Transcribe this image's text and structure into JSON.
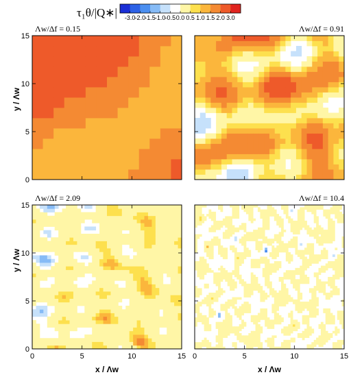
{
  "chart_data": {
    "type": "heatmap",
    "colorbar": {
      "title": "τ₁θ/|Q∗|",
      "ticks": [
        "-3.0",
        "-2.0",
        "-1.5",
        "-1.0",
        "-0.5",
        "0.0",
        "0.5",
        "1.0",
        "1.5",
        "2.0",
        "3.0"
      ],
      "colors": [
        "#1a2fd6",
        "#2d62e6",
        "#4b8ff0",
        "#86bbf6",
        "#c6e1fb",
        "#ffffff",
        "#fff6a6",
        "#fde04e",
        "#fbb63c",
        "#f48a33",
        "#ee5a2a",
        "#e0241f"
      ]
    },
    "xlabel": "x / Λw",
    "ylabel": "y / Λw",
    "xlim": [
      0,
      15
    ],
    "ylim": [
      0,
      15
    ],
    "x_ticks": [
      "0",
      "5",
      "10",
      "15"
    ],
    "y_ticks": [
      "0",
      "5",
      "10",
      "15"
    ],
    "panels": [
      {
        "title": "Λw/Δf = 0.15",
        "ratio": 0.15
      },
      {
        "title": "Λw/Δf = 0.91",
        "ratio": 0.91
      },
      {
        "title": "Λw/Δf = 2.09",
        "ratio": 2.09
      },
      {
        "title": "Λw/Δf = 10.4",
        "ratio": 10.4
      }
    ]
  }
}
